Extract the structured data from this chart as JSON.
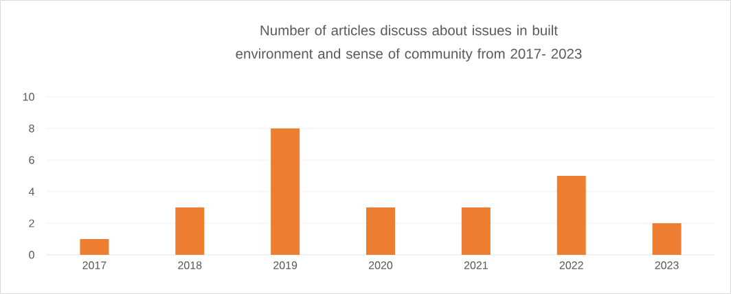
{
  "chart_data": {
    "type": "bar",
    "title": "Number of articles discuss about issues in built environment and sense of community from 2017- 2023",
    "categories": [
      "2017",
      "2018",
      "2019",
      "2020",
      "2021",
      "2022",
      "2023"
    ],
    "values": [
      1,
      3,
      8,
      3,
      3,
      5,
      2
    ],
    "color": "#ed7d31",
    "ylim": [
      0,
      10
    ],
    "yticks": [
      0,
      2,
      4,
      6,
      8,
      10
    ],
    "grid": "y"
  }
}
